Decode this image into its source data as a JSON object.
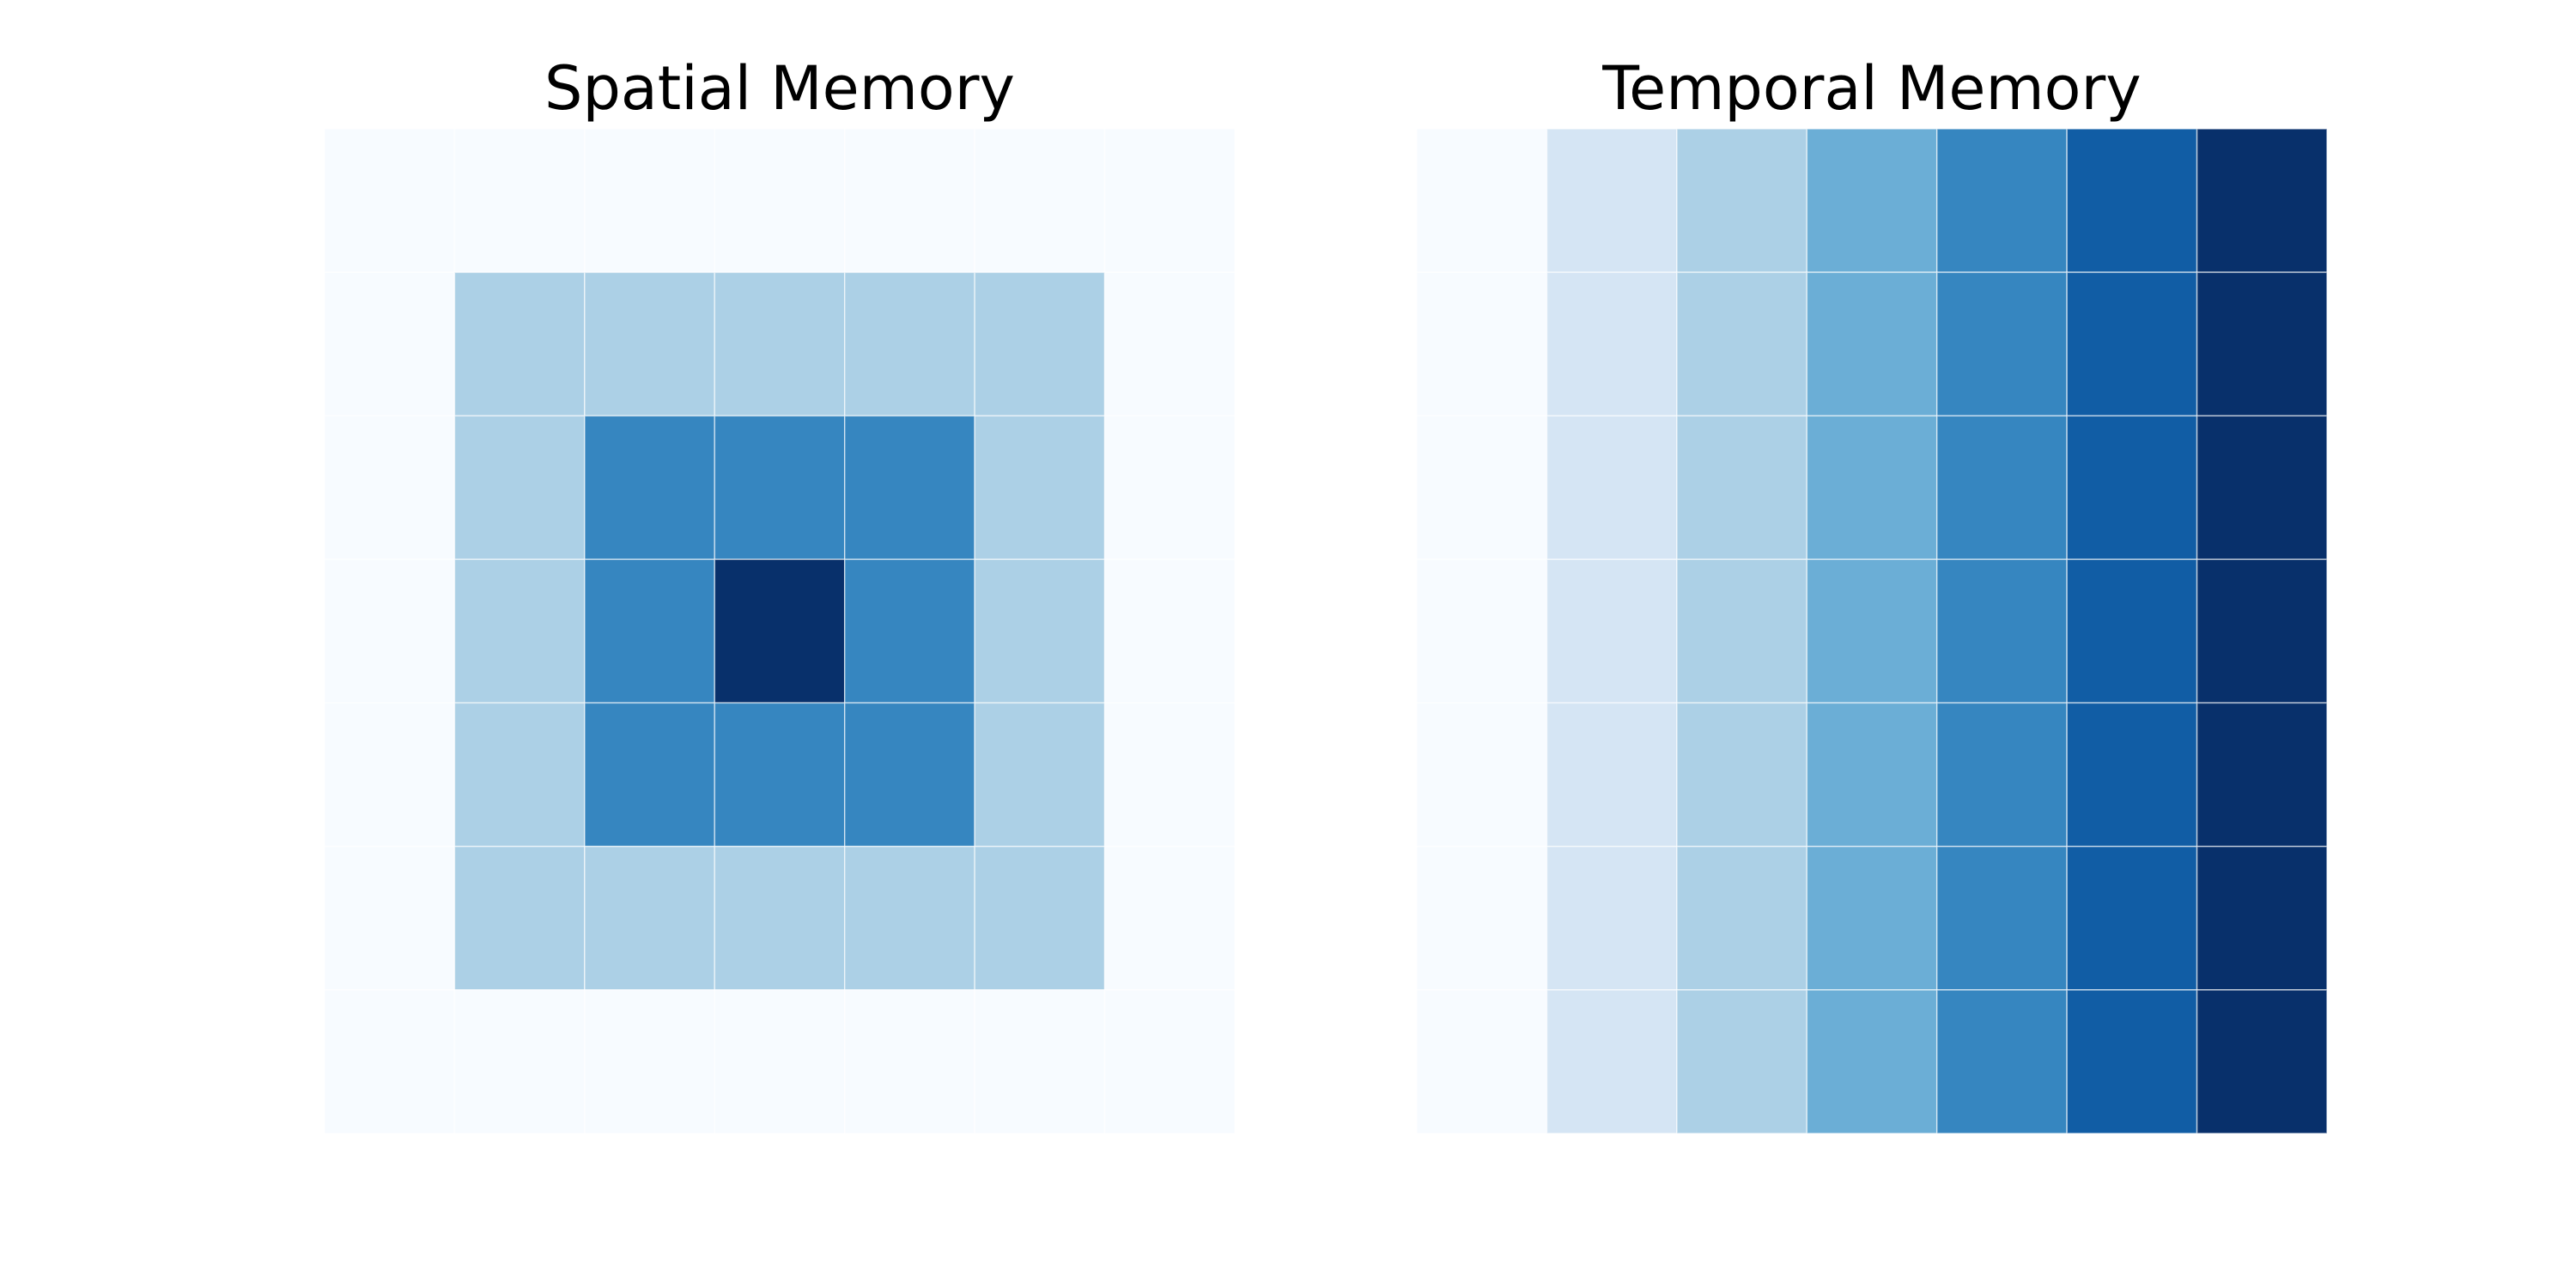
{
  "chart_data": [
    {
      "type": "heatmap",
      "title": "Spatial Memory",
      "colormap": "Blues",
      "value_range": [
        0,
        1
      ],
      "cell_border_color": "#ffffff",
      "rows": 7,
      "cols": 7,
      "values": [
        [
          0.0,
          0.0,
          0.0,
          0.0,
          0.0,
          0.0,
          0.0
        ],
        [
          0.0,
          0.33,
          0.33,
          0.33,
          0.33,
          0.33,
          0.0
        ],
        [
          0.0,
          0.33,
          0.67,
          0.67,
          0.67,
          0.33,
          0.0
        ],
        [
          0.0,
          0.33,
          0.67,
          1.0,
          0.67,
          0.33,
          0.0
        ],
        [
          0.0,
          0.33,
          0.67,
          0.67,
          0.67,
          0.33,
          0.0
        ],
        [
          0.0,
          0.33,
          0.33,
          0.33,
          0.33,
          0.33,
          0.0
        ],
        [
          0.0,
          0.0,
          0.0,
          0.0,
          0.0,
          0.0,
          0.0
        ]
      ],
      "axes_visible": false,
      "grid": false
    },
    {
      "type": "heatmap",
      "title": "Temporal Memory",
      "colormap": "Blues",
      "value_range": [
        0,
        1
      ],
      "cell_border_color": "#ffffff",
      "rows": 7,
      "cols": 7,
      "values": [
        [
          0.0,
          0.17,
          0.33,
          0.5,
          0.67,
          0.83,
          1.0
        ],
        [
          0.0,
          0.17,
          0.33,
          0.5,
          0.67,
          0.83,
          1.0
        ],
        [
          0.0,
          0.17,
          0.33,
          0.5,
          0.67,
          0.83,
          1.0
        ],
        [
          0.0,
          0.17,
          0.33,
          0.5,
          0.67,
          0.83,
          1.0
        ],
        [
          0.0,
          0.17,
          0.33,
          0.5,
          0.67,
          0.83,
          1.0
        ],
        [
          0.0,
          0.17,
          0.33,
          0.5,
          0.67,
          0.83,
          1.0
        ],
        [
          0.0,
          0.17,
          0.33,
          0.5,
          0.67,
          0.83,
          1.0
        ]
      ],
      "axes_visible": false,
      "grid": false
    }
  ]
}
